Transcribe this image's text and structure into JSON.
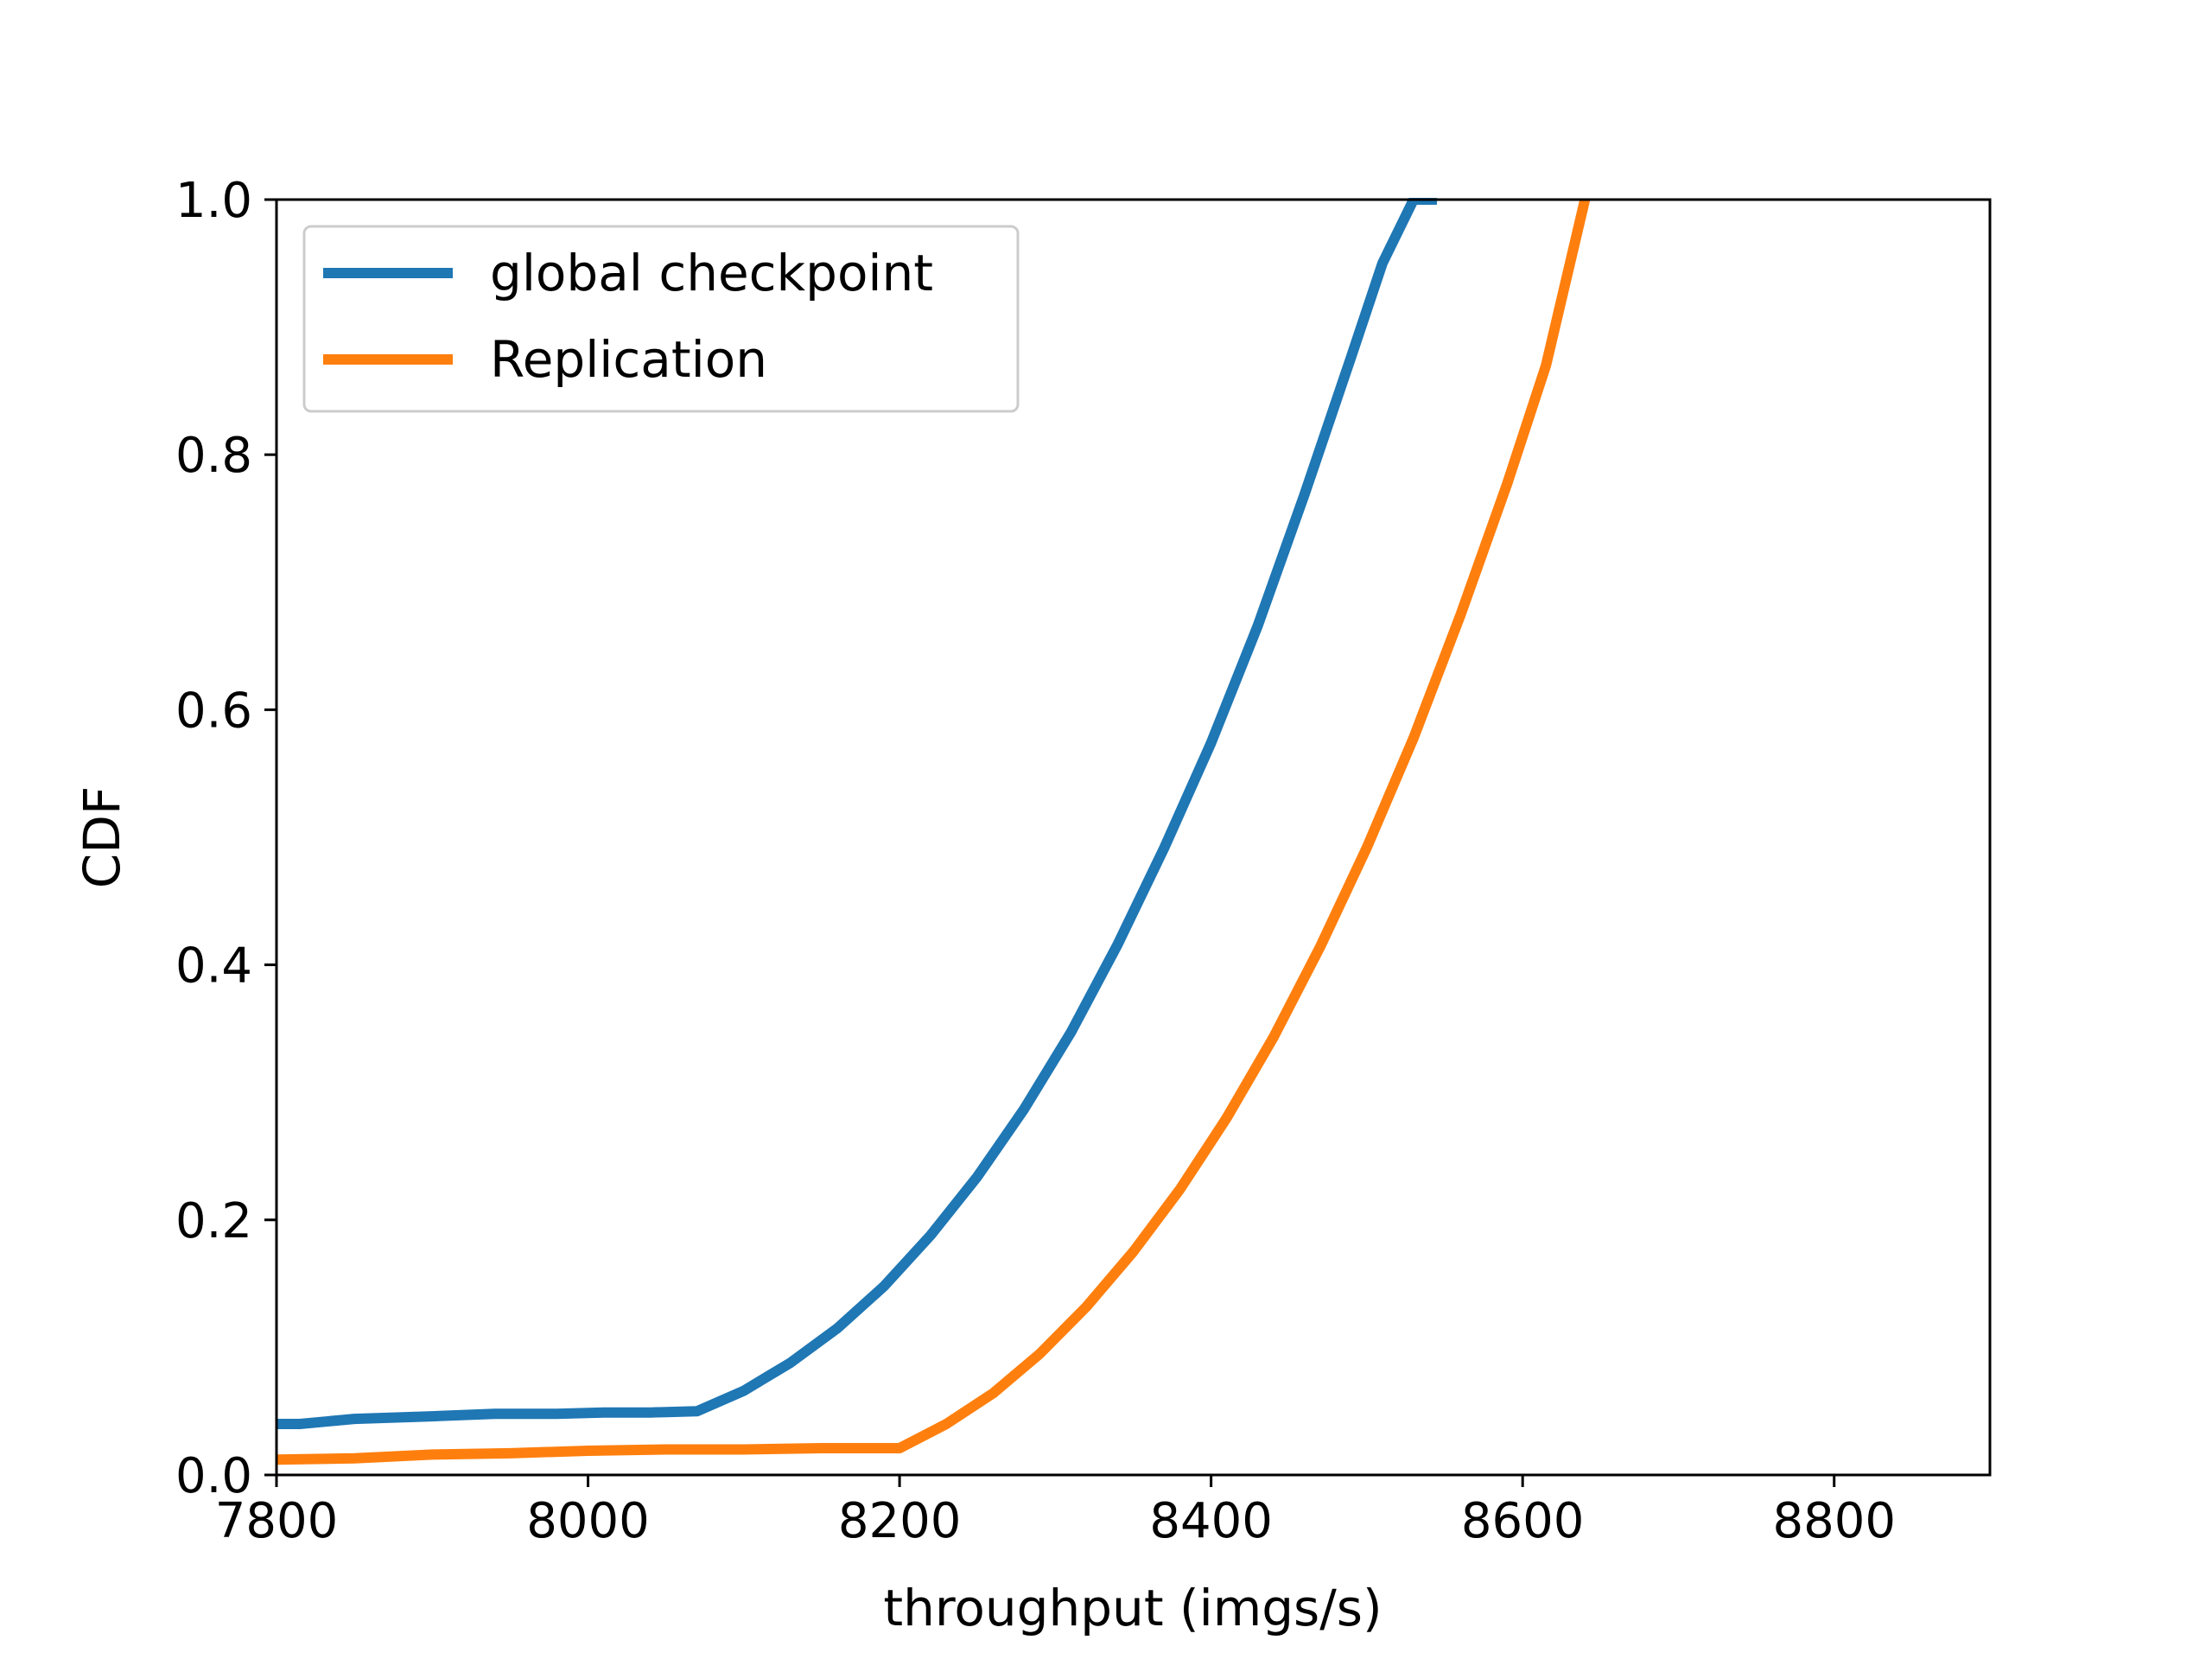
{
  "chart_data": {
    "type": "line",
    "xlabel": "throughput (imgs/s)",
    "ylabel": "CDF",
    "xlim": [
      7800,
      8900
    ],
    "ylim": [
      0.0,
      1.0
    ],
    "xticks": [
      "7800",
      "8000",
      "8200",
      "8400",
      "8600",
      "8800"
    ],
    "yticks": [
      "0.0",
      "0.2",
      "0.4",
      "0.6",
      "0.8",
      "1.0"
    ],
    "grid": false,
    "legend_position": "upper-left",
    "series": [
      {
        "name": "global checkpoint",
        "color": "#1f77b4",
        "x": [
          7800,
          7815,
          7850,
          7900,
          7940,
          7980,
          8010,
          8040,
          8070,
          8100,
          8130,
          8160,
          8190,
          8220,
          8250,
          8280,
          8310,
          8340,
          8370,
          8400,
          8430,
          8460,
          8490,
          8510,
          8530,
          8545
        ],
        "y": [
          0.04,
          0.04,
          0.044,
          0.046,
          0.048,
          0.048,
          0.049,
          0.049,
          0.05,
          0.066,
          0.088,
          0.115,
          0.148,
          0.188,
          0.234,
          0.287,
          0.347,
          0.416,
          0.492,
          0.574,
          0.666,
          0.769,
          0.877,
          0.95,
          1.0,
          1.0
        ]
      },
      {
        "name": "Replication",
        "color": "#ff7f0e",
        "x": [
          7800,
          7850,
          7900,
          7950,
          8000,
          8050,
          8100,
          8150,
          8200,
          8230,
          8260,
          8290,
          8320,
          8350,
          8380,
          8410,
          8440,
          8470,
          8500,
          8530,
          8560,
          8590,
          8615,
          8640
        ],
        "y": [
          0.012,
          0.013,
          0.016,
          0.017,
          0.019,
          0.02,
          0.02,
          0.021,
          0.021,
          0.04,
          0.064,
          0.095,
          0.132,
          0.175,
          0.224,
          0.28,
          0.343,
          0.414,
          0.492,
          0.578,
          0.674,
          0.777,
          0.87,
          1.0
        ]
      }
    ]
  }
}
